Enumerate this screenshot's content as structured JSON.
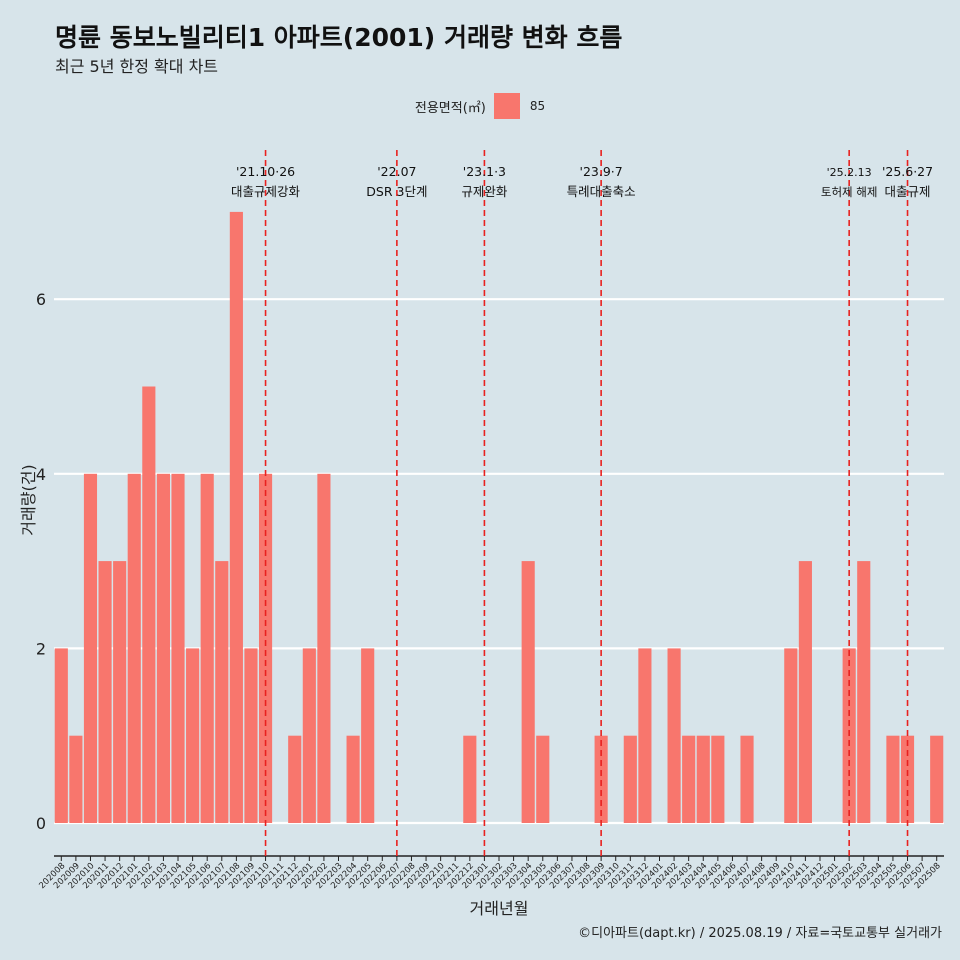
{
  "header": {
    "title": "명륜 동보노빌리티1 아파트(2001) 거래량 변화 흐름",
    "subtitle": "최근 5년 한정 확대 차트"
  },
  "legend": {
    "title": "전용면적(㎡)",
    "label": "85",
    "color": "#f8766d"
  },
  "caption": "©디아파트(dapt.kr) / 2025.08.19 / 자료=국토교통부 실거래가",
  "chart_data": {
    "type": "bar",
    "xlabel": "거래년월",
    "ylabel": "거래량(건)",
    "ylim": [
      0,
      7
    ],
    "yticks": [
      0,
      2,
      4,
      6
    ],
    "grid": true,
    "categories": [
      "202008",
      "202009",
      "202010",
      "202011",
      "202012",
      "202101",
      "202102",
      "202103",
      "202104",
      "202105",
      "202106",
      "202107",
      "202108",
      "202109",
      "202110",
      "202111",
      "202112",
      "202201",
      "202202",
      "202203",
      "202204",
      "202205",
      "202206",
      "202207",
      "202208",
      "202209",
      "202210",
      "202211",
      "202212",
      "202301",
      "202302",
      "202303",
      "202304",
      "202305",
      "202306",
      "202307",
      "202308",
      "202309",
      "202310",
      "202311",
      "202312",
      "202401",
      "202402",
      "202403",
      "202404",
      "202405",
      "202406",
      "202407",
      "202408",
      "202409",
      "202410",
      "202411",
      "202412",
      "202501",
      "202502",
      "202503",
      "202504",
      "202505",
      "202506",
      "202507",
      "202508"
    ],
    "series": [
      {
        "name": "85",
        "values": [
          2,
          1,
          4,
          3,
          3,
          4,
          5,
          4,
          4,
          2,
          4,
          3,
          7,
          2,
          4,
          0,
          1,
          2,
          4,
          0,
          1,
          2,
          0,
          0,
          0,
          0,
          0,
          0,
          1,
          0,
          0,
          0,
          3,
          1,
          0,
          0,
          0,
          1,
          0,
          1,
          2,
          0,
          2,
          1,
          1,
          1,
          0,
          1,
          0,
          0,
          2,
          3,
          0,
          0,
          2,
          3,
          0,
          1,
          1,
          0,
          1
        ]
      }
    ],
    "annotations": [
      {
        "category": "202110",
        "date": "'21.10·26",
        "label": "대출규제강화"
      },
      {
        "category": "202207",
        "date": "'22.07",
        "label": "DSR 3단계"
      },
      {
        "category": "202301",
        "date": "'23.1·3",
        "label": "규제완화"
      },
      {
        "category": "202309",
        "date": "'23.9·7",
        "label": "특례대출축소"
      },
      {
        "category": "202502",
        "date": "'25.2.13",
        "label": "토허제 해제"
      },
      {
        "category": "202506",
        "date": "'25.6·27",
        "label": "대출규제"
      }
    ]
  }
}
